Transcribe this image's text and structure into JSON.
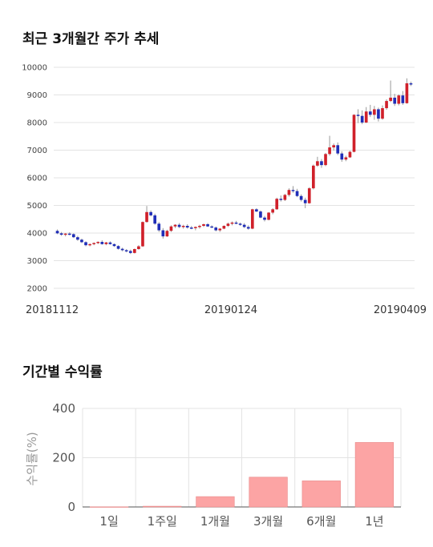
{
  "sections": {
    "price_title": "최근 3개월간 주가 추세",
    "returns_title": "기간별 수익률"
  },
  "chart_data": [
    {
      "type": "candlestick",
      "title": "최근 3개월간 주가 추세",
      "ylim": [
        2000,
        10000
      ],
      "yticks": [
        2000,
        3000,
        4000,
        5000,
        6000,
        7000,
        8000,
        9000,
        10000
      ],
      "x_labels": [
        "20181112",
        "20190124",
        "20190409"
      ],
      "grid": true,
      "up_color": "#d0202a",
      "down_color": "#1f2db8",
      "candles": [
        [
          4080,
          4130,
          3960,
          3990
        ],
        [
          3990,
          4040,
          3900,
          3940
        ],
        [
          3940,
          4000,
          3880,
          3980
        ],
        [
          3980,
          4030,
          3920,
          3960
        ],
        [
          3960,
          3990,
          3820,
          3850
        ],
        [
          3850,
          3900,
          3720,
          3760
        ],
        [
          3760,
          3800,
          3640,
          3670
        ],
        [
          3670,
          3700,
          3520,
          3560
        ],
        [
          3560,
          3620,
          3520,
          3600
        ],
        [
          3600,
          3660,
          3560,
          3640
        ],
        [
          3640,
          3700,
          3600,
          3680
        ],
        [
          3680,
          3740,
          3580,
          3600
        ],
        [
          3600,
          3680,
          3560,
          3660
        ],
        [
          3660,
          3700,
          3580,
          3600
        ],
        [
          3600,
          3620,
          3500,
          3530
        ],
        [
          3530,
          3560,
          3400,
          3430
        ],
        [
          3430,
          3470,
          3340,
          3380
        ],
        [
          3380,
          3420,
          3300,
          3350
        ],
        [
          3350,
          3400,
          3240,
          3280
        ],
        [
          3280,
          3440,
          3260,
          3420
        ],
        [
          3420,
          3560,
          3400,
          3520
        ],
        [
          3520,
          4420,
          3500,
          4400
        ],
        [
          4400,
          4980,
          4380,
          4760
        ],
        [
          4760,
          4820,
          4600,
          4640
        ],
        [
          4640,
          4700,
          4300,
          4340
        ],
        [
          4340,
          4400,
          4040,
          4100
        ],
        [
          4100,
          4180,
          3800,
          3880
        ],
        [
          3880,
          4120,
          3860,
          4080
        ],
        [
          4080,
          4280,
          4040,
          4240
        ],
        [
          4240,
          4320,
          4180,
          4300
        ],
        [
          4300,
          4360,
          4180,
          4220
        ],
        [
          4220,
          4300,
          4160,
          4260
        ],
        [
          4260,
          4320,
          4160,
          4200
        ],
        [
          4200,
          4260,
          4140,
          4180
        ],
        [
          4180,
          4240,
          4100,
          4220
        ],
        [
          4220,
          4300,
          4160,
          4260
        ],
        [
          4260,
          4340,
          4220,
          4320
        ],
        [
          4320,
          4360,
          4220,
          4240
        ],
        [
          4240,
          4280,
          4180,
          4200
        ],
        [
          4200,
          4240,
          4060,
          4100
        ],
        [
          4100,
          4180,
          4040,
          4160
        ],
        [
          4160,
          4280,
          4140,
          4260
        ],
        [
          4260,
          4380,
          4220,
          4340
        ],
        [
          4340,
          4420,
          4280,
          4380
        ],
        [
          4380,
          4440,
          4320,
          4340
        ],
        [
          4340,
          4380,
          4260,
          4300
        ],
        [
          4300,
          4360,
          4180,
          4220
        ],
        [
          4220,
          4280,
          4120,
          4160
        ],
        [
          4160,
          4880,
          4140,
          4860
        ],
        [
          4860,
          4900,
          4760,
          4780
        ],
        [
          4780,
          4820,
          4540,
          4560
        ],
        [
          4560,
          4620,
          4420,
          4480
        ],
        [
          4480,
          4760,
          4460,
          4740
        ],
        [
          4740,
          4900,
          4680,
          4860
        ],
        [
          4860,
          5280,
          4840,
          5240
        ],
        [
          5240,
          5360,
          5140,
          5200
        ],
        [
          5200,
          5420,
          5160,
          5380
        ],
        [
          5380,
          5620,
          5320,
          5560
        ],
        [
          5560,
          5700,
          5460,
          5520
        ],
        [
          5520,
          5600,
          5300,
          5340
        ],
        [
          5340,
          5400,
          5140,
          5200
        ],
        [
          5200,
          5280,
          4900,
          5080
        ],
        [
          5080,
          5660,
          5060,
          5620
        ],
        [
          5620,
          6480,
          5580,
          6440
        ],
        [
          6440,
          6760,
          6400,
          6600
        ],
        [
          6600,
          6680,
          6360,
          6460
        ],
        [
          6460,
          6900,
          6420,
          6860
        ],
        [
          6860,
          7520,
          6800,
          7100
        ],
        [
          7100,
          7240,
          6980,
          7180
        ],
        [
          7180,
          7280,
          6820,
          6880
        ],
        [
          6880,
          6960,
          6580,
          6660
        ],
        [
          6660,
          6800,
          6600,
          6740
        ],
        [
          6740,
          6980,
          6720,
          6940
        ],
        [
          6940,
          8300,
          6920,
          8280
        ],
        [
          8280,
          8480,
          7980,
          8240
        ],
        [
          8240,
          8440,
          7940,
          8000
        ],
        [
          8000,
          8560,
          7980,
          8400
        ],
        [
          8400,
          8640,
          8200,
          8280
        ],
        [
          8280,
          8600,
          8100,
          8480
        ],
        [
          8480,
          8540,
          8040,
          8140
        ],
        [
          8140,
          8620,
          8100,
          8520
        ],
        [
          8520,
          8840,
          8460,
          8780
        ],
        [
          8780,
          9520,
          8740,
          8900
        ],
        [
          8900,
          9040,
          8600,
          8680
        ],
        [
          8680,
          9020,
          8620,
          8980
        ],
        [
          8980,
          9140,
          8640,
          8700
        ],
        [
          8700,
          9600,
          8680,
          9420
        ],
        [
          9420,
          9480,
          9320,
          9380
        ]
      ]
    },
    {
      "type": "bar",
      "title": "기간별 수익률",
      "ylabel": "수익률(%)",
      "categories": [
        "1일",
        "1주일",
        "1개월",
        "3개월",
        "6개월",
        "1년"
      ],
      "values": [
        0.5,
        3,
        42,
        121,
        106,
        262
      ],
      "ylim": [
        0,
        400
      ],
      "yticks": [
        0,
        200,
        400
      ],
      "grid": true,
      "bar_color": "#fca4a4",
      "bar_edge": "#e88888"
    }
  ]
}
